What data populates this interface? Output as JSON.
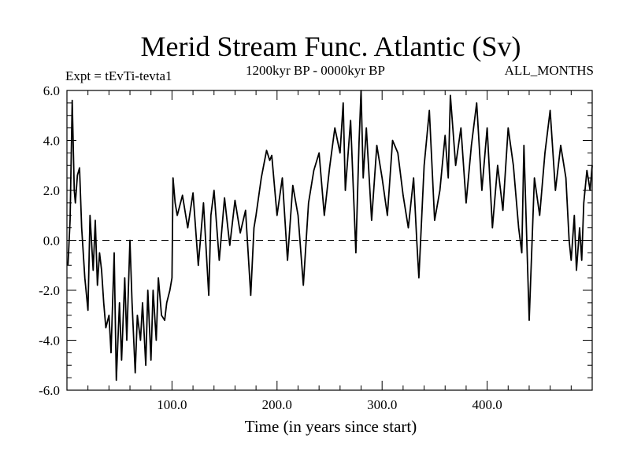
{
  "chart_data": {
    "type": "line",
    "title": "Merid Stream Func. Atlantic (Sv)",
    "subtitle": "1200kyr BP - 0000kyr BP",
    "left_label": "Expt = tEvTi-tevta1",
    "right_label": "ALL_MONTHS",
    "xlabel": "Time (in years since start)",
    "ylabel": "",
    "xlim": [
      0,
      500
    ],
    "ylim": [
      -6,
      6
    ],
    "xticks": [
      100,
      200,
      300,
      400
    ],
    "xtick_labels": [
      "100.0",
      "200.0",
      "300.0",
      "400.0"
    ],
    "yticks": [
      -6,
      -4,
      -2,
      0,
      2,
      4,
      6
    ],
    "ytick_labels": [
      "-6.0",
      "-4.0",
      "-2.0",
      "0.0",
      "2.0",
      "4.0",
      "6.0"
    ],
    "reference_line": 0,
    "series": [
      {
        "name": "Merid Stream Func. Atlantic",
        "x": [
          1,
          3,
          5,
          7,
          8,
          10,
          12,
          14,
          17,
          20,
          22,
          25,
          27,
          29,
          31,
          33,
          35,
          37,
          40,
          42,
          45,
          47,
          49,
          50,
          52,
          55,
          57,
          60,
          62,
          65,
          67,
          70,
          72,
          75,
          77,
          80,
          82,
          85,
          87,
          90,
          93,
          95,
          98,
          100,
          101,
          103,
          105,
          110,
          115,
          120,
          125,
          130,
          135,
          137,
          140,
          145,
          150,
          155,
          160,
          165,
          170,
          175,
          178,
          180,
          185,
          190,
          193,
          195,
          200,
          205,
          210,
          215,
          220,
          225,
          230,
          235,
          240,
          245,
          250,
          255,
          260,
          263,
          265,
          270,
          275,
          278,
          280,
          282,
          285,
          290,
          295,
          300,
          305,
          310,
          315,
          320,
          325,
          330,
          333,
          335,
          340,
          345,
          350,
          355,
          360,
          363,
          365,
          370,
          375,
          380,
          385,
          390,
          395,
          400,
          405,
          410,
          415,
          420,
          425,
          430,
          433,
          435,
          440,
          445,
          450,
          455,
          460,
          465,
          470,
          475,
          478,
          480,
          483,
          485,
          488,
          490,
          492,
          495,
          498,
          500
        ],
        "values": [
          -1.0,
          0.8,
          5.6,
          2.0,
          1.5,
          2.6,
          2.9,
          0.5,
          -1.5,
          -2.8,
          1.0,
          -1.2,
          0.8,
          -1.8,
          -0.5,
          -1.2,
          -2.5,
          -3.5,
          -3.0,
          -4.5,
          -0.5,
          -5.6,
          -3.5,
          -2.5,
          -4.8,
          -1.5,
          -4.0,
          0.0,
          -2.5,
          -5.3,
          -3.0,
          -4.0,
          -2.5,
          -5.0,
          -2.0,
          -4.8,
          -2.0,
          -4.0,
          -1.5,
          -3.0,
          -3.2,
          -2.5,
          -2.0,
          -1.5,
          2.5,
          1.5,
          1.0,
          1.8,
          0.5,
          1.9,
          -1.0,
          1.5,
          -2.2,
          1.0,
          2.0,
          -0.8,
          1.7,
          -0.2,
          1.6,
          0.3,
          1.2,
          -2.2,
          0.5,
          1.0,
          2.5,
          3.6,
          3.2,
          3.4,
          1.0,
          2.5,
          -0.8,
          2.2,
          1.0,
          -1.8,
          1.5,
          2.8,
          3.5,
          1.0,
          2.9,
          4.5,
          3.5,
          5.5,
          2.0,
          4.8,
          -0.5,
          3.9,
          6.0,
          2.5,
          4.5,
          0.8,
          3.8,
          2.5,
          1.0,
          4.0,
          3.5,
          1.8,
          0.5,
          2.5,
          0.0,
          -1.5,
          3.0,
          5.2,
          0.8,
          2.0,
          4.2,
          2.5,
          5.8,
          3.0,
          4.5,
          1.5,
          3.8,
          5.5,
          2.0,
          4.5,
          0.5,
          3.0,
          1.2,
          4.5,
          3.0,
          0.5,
          -0.5,
          3.8,
          -3.2,
          2.5,
          1.0,
          3.5,
          5.2,
          2.0,
          3.8,
          2.5,
          0.0,
          -0.8,
          1.0,
          -1.2,
          0.5,
          -0.8,
          1.5,
          2.8,
          2.0,
          3.0
        ]
      }
    ]
  }
}
